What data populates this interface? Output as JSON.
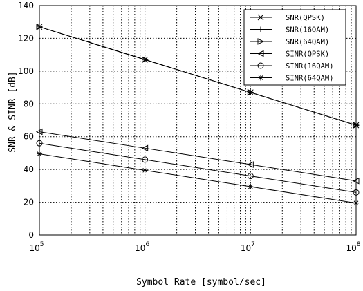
{
  "chart_data": {
    "type": "line",
    "xscale": "log",
    "x": [
      100000,
      1000000,
      10000000,
      100000000
    ],
    "x_tick_labels": [
      {
        "base": "10",
        "exp": "5"
      },
      {
        "base": "10",
        "exp": "6"
      },
      {
        "base": "10",
        "exp": "7"
      },
      {
        "base": "10",
        "exp": "8"
      }
    ],
    "y_ticks": [
      "0",
      "20",
      "40",
      "60",
      "80",
      "100",
      "120",
      "140"
    ],
    "xlim": [
      100000,
      100000000
    ],
    "ylim": [
      0,
      140
    ],
    "xlabel": "Symbol Rate [symbol/sec]",
    "ylabel": "SNR & SINR [dB]",
    "grid": true,
    "legend_position": "top-right",
    "colors": {
      "line": "#000000",
      "grid": "#000000",
      "background": "#ffffff"
    },
    "series": [
      {
        "name": "SNR(QPSK)",
        "marker": "x",
        "values": [
          127,
          107,
          87,
          67
        ]
      },
      {
        "name": "SNR(16QAM)",
        "marker": "plus",
        "values": [
          127,
          107,
          87,
          67
        ]
      },
      {
        "name": "SNR(64QAM)",
        "marker": "triangle-right",
        "values": [
          127,
          107,
          87,
          67
        ]
      },
      {
        "name": "SINR(QPSK)",
        "marker": "triangle-left",
        "values": [
          63,
          53,
          43,
          33
        ]
      },
      {
        "name": "SINR(16QAM)",
        "marker": "circle",
        "values": [
          56,
          46,
          36,
          26
        ]
      },
      {
        "name": "SINR(64QAM)",
        "marker": "star",
        "values": [
          49.5,
          39.5,
          29.5,
          19.5
        ]
      }
    ]
  }
}
